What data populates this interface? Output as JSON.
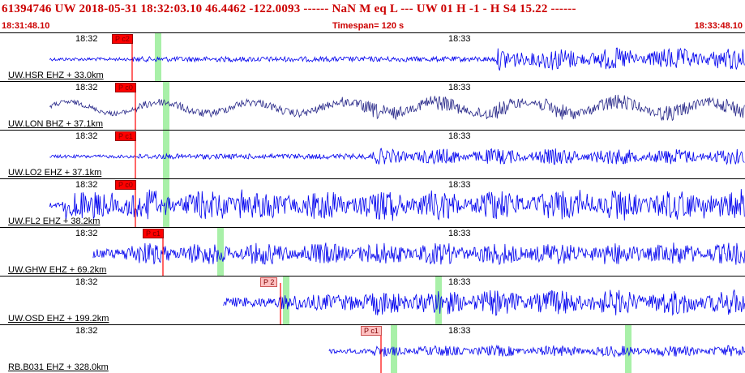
{
  "header": {
    "title": "61394746 UW 2018-05-31 18:32:03.10   46.4462 -122.0093 ------   NaN M   eq  L ---      UW 01  H  -1  -  H S4   15.22 ------",
    "start_time": "18:31:48.10",
    "timespan": "Timespan= 120 s",
    "end_time": "18:33:48.10"
  },
  "colors": {
    "trace_blue": "#0000ee",
    "trace_dark": "#2a2a8a",
    "pick_red": "#ff0000",
    "pick_light": "#ffc0c0",
    "window_green": "#a8f0a8",
    "header_red": "#cc0000"
  },
  "panels": [
    {
      "label": "UW.HSR EHZ + 33.0km",
      "tick1": "18:32",
      "tick2": "18:33",
      "pick": "P c2",
      "pick_style": "dark",
      "trace_color": "blue",
      "start_s": 8,
      "noise_amp": 2,
      "burst_amp": 14,
      "burst_start_s": 80
    },
    {
      "label": "UW.LON BHZ + 37.1km",
      "tick1": "18:32",
      "tick2": "18:33",
      "pick": "P c0",
      "pick_style": "dark",
      "trace_color": "dark",
      "start_s": 8,
      "noise_amp": 3,
      "burst_amp": 10,
      "burst_start_s": 55
    },
    {
      "label": "UW.LO2 EHZ + 37.1km",
      "tick1": "18:32",
      "tick2": "18:33",
      "pick": "P c1",
      "pick_style": "dark",
      "trace_color": "blue",
      "start_s": 8,
      "noise_amp": 2,
      "burst_amp": 10,
      "burst_start_s": 60
    },
    {
      "label": "UW.FL2 EHZ + 38.2km",
      "tick1": "18:32",
      "tick2": "18:33",
      "pick": "P c0",
      "pick_style": "dark",
      "trace_color": "blue",
      "start_s": 8,
      "noise_amp": 3,
      "burst_amp": 18,
      "burst_start_s": 10
    },
    {
      "label": "UW.GHW EHZ + 69.2km",
      "tick1": "18:32",
      "tick2": "18:33",
      "pick": "P c1",
      "pick_style": "dark",
      "trace_color": "blue",
      "start_s": 15,
      "noise_amp": 6,
      "burst_amp": 14,
      "burst_start_s": 20
    },
    {
      "label": "UW.OSD EHZ + 199.2km",
      "tick1": "18:32",
      "tick2": "18:33",
      "pick": "P 2",
      "pick_style": "light",
      "trace_color": "blue",
      "start_s": 36,
      "noise_amp": 6,
      "burst_amp": 16,
      "burst_start_s": 60
    },
    {
      "label": "RB.B031 EHZ + 328.0km",
      "tick1": "18:32",
      "tick2": "18:33",
      "pick": "P c1",
      "pick_style": "light",
      "trace_color": "blue",
      "start_s": 53,
      "noise_amp": 3,
      "burst_amp": 7,
      "burst_start_s": 60
    }
  ]
}
